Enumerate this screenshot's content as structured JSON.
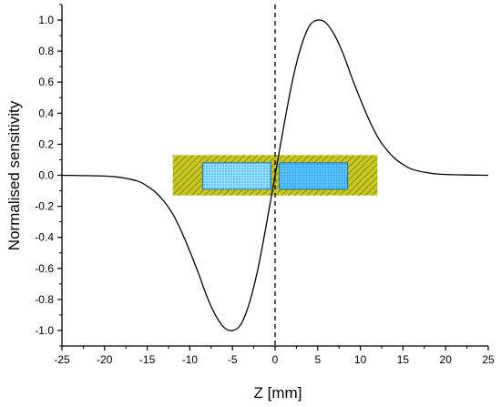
{
  "chart_data": {
    "type": "line",
    "title": "",
    "xlabel": "Z [mm]",
    "ylabel": "Normalised sensitivity",
    "xlim": [
      -25,
      25
    ],
    "ylim": [
      -1.1,
      1.1
    ],
    "x_ticks": [
      -25,
      -20,
      -15,
      -10,
      -5,
      0,
      5,
      10,
      15,
      20,
      25
    ],
    "y_ticks": [
      -1.0,
      -0.8,
      -0.6,
      -0.4,
      -0.2,
      0.0,
      0.2,
      0.4,
      0.6,
      0.8,
      1.0
    ],
    "y_tick_labels": [
      "-1.0",
      "-0.8",
      "-0.6",
      "-0.4",
      "-0.2",
      "0.0",
      "0.2",
      "0.4",
      "0.6",
      "0.8",
      "1.0"
    ],
    "grid": false,
    "series": [
      {
        "x": [
          -25,
          -20,
          -18,
          -16,
          -15,
          -14,
          -13,
          -12,
          -11,
          -10,
          -9,
          -8,
          -7,
          -6,
          -5,
          -4,
          -3,
          -2,
          -1,
          0,
          1,
          2,
          3,
          4,
          5,
          6,
          7,
          8,
          9,
          10,
          11,
          12,
          13,
          14,
          15,
          16,
          18,
          20,
          25
        ],
        "y": [
          0.0,
          -0.005,
          -0.015,
          -0.04,
          -0.07,
          -0.11,
          -0.17,
          -0.25,
          -0.36,
          -0.49,
          -0.63,
          -0.78,
          -0.9,
          -0.98,
          -1.0,
          -0.96,
          -0.82,
          -0.6,
          -0.31,
          0.0,
          0.31,
          0.6,
          0.82,
          0.96,
          1.0,
          0.98,
          0.9,
          0.78,
          0.63,
          0.49,
          0.36,
          0.25,
          0.17,
          0.11,
          0.07,
          0.04,
          0.015,
          0.005,
          0.0
        ],
        "color": "#000000"
      }
    ],
    "reference_line": {
      "x": 0,
      "style": "dashed",
      "color": "#000000"
    },
    "inset_diagram": {
      "outer_rect": {
        "x": [
          -12,
          12
        ],
        "y": [
          -0.13,
          0.13
        ],
        "fill": "#c8c81e",
        "hatch": "#6b6b12"
      },
      "coils": [
        {
          "x": [
            -8.5,
            -0.5
          ],
          "y": [
            -0.09,
            0.08
          ],
          "fill": "#5ac8ff",
          "grid": "#ffffff",
          "border": "#1f6fbf"
        },
        {
          "x": [
            0.5,
            8.5
          ],
          "y": [
            -0.09,
            0.08
          ],
          "fill": "#5ac8ff",
          "grid": "#2e8fd6",
          "border": "#1f6fbf"
        }
      ]
    }
  }
}
